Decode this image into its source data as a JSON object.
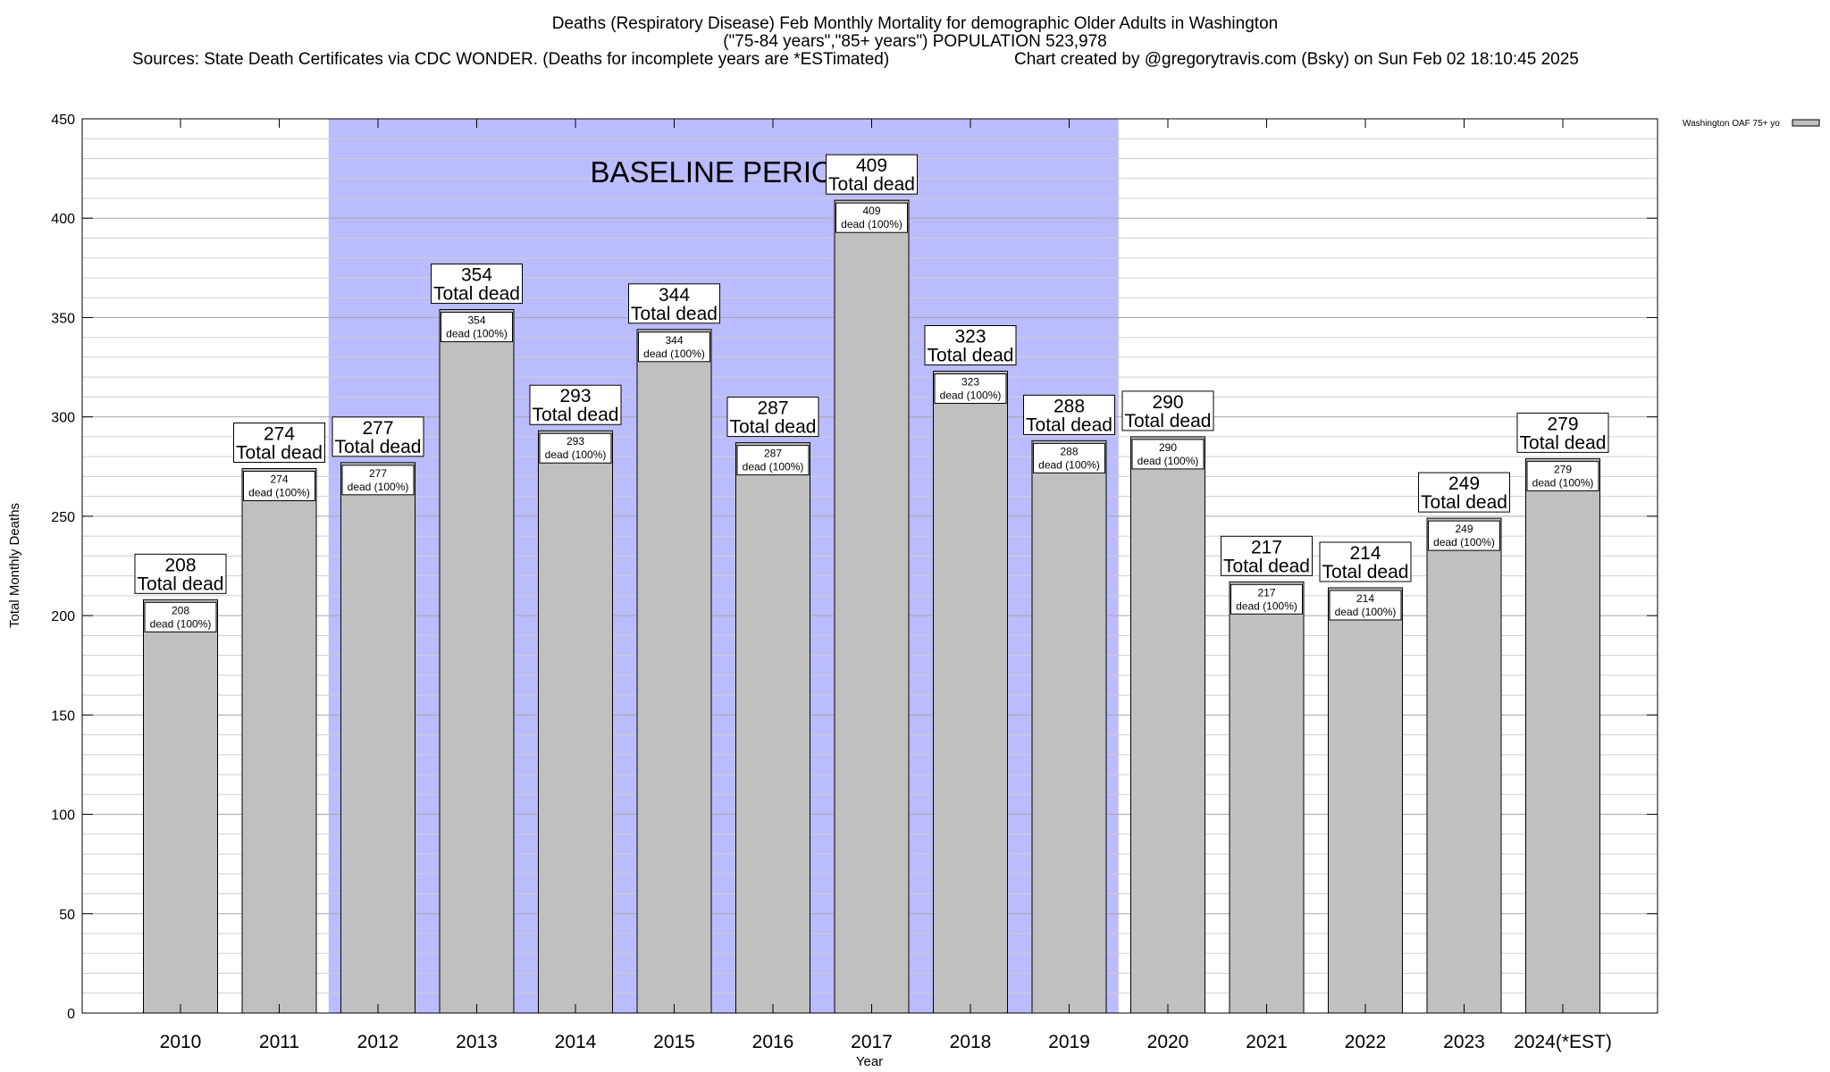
{
  "header": {
    "line1": "Deaths (Respiratory Disease) Feb Monthly Mortality for demographic Older Adults in Washington",
    "line2": "(\"75-84 years\",\"85+ years\") POPULATION 523,978",
    "line3_sources": "Sources: State Death Certificates via CDC WONDER. (Deaths for incomplete years are *ESTimated)",
    "line3_credit": "Chart created by @gregorytravis.com (Bsky) on Sun Feb 02 18:10:45 2025"
  },
  "colors": {
    "bar_fill": "#c0c0c0",
    "baseline_fill": "#bbbbff",
    "grid": "#b0b0b0"
  },
  "chart_data": {
    "type": "bar",
    "title": "Deaths (Respiratory Disease) Feb Monthly Mortality for demographic Older Adults in Washington",
    "xlabel": "Year",
    "ylabel": "Total Monthly Deaths",
    "ylim": [
      0,
      450
    ],
    "y_ticks": [
      0,
      50,
      100,
      150,
      200,
      250,
      300,
      350,
      400,
      450
    ],
    "grid": true,
    "categories": [
      "2010",
      "2011",
      "2012",
      "2013",
      "2014",
      "2015",
      "2016",
      "2017",
      "2018",
      "2019",
      "2020",
      "2021",
      "2022",
      "2023",
      "2024(*EST)"
    ],
    "series": [
      {
        "name": "Washington OAF 75+ yo",
        "values": [
          208,
          274,
          277,
          354,
          293,
          344,
          287,
          409,
          323,
          288,
          290,
          217,
          214,
          249,
          279
        ]
      }
    ],
    "total_label": "Total dead",
    "inner_label": "dead (100%)",
    "baseline": {
      "label": "BASELINE PERIOD",
      "start": "2012",
      "end": "2019"
    },
    "legend": {
      "entries": [
        "Washington OAF 75+ yo"
      ],
      "placement": "top-right"
    }
  }
}
